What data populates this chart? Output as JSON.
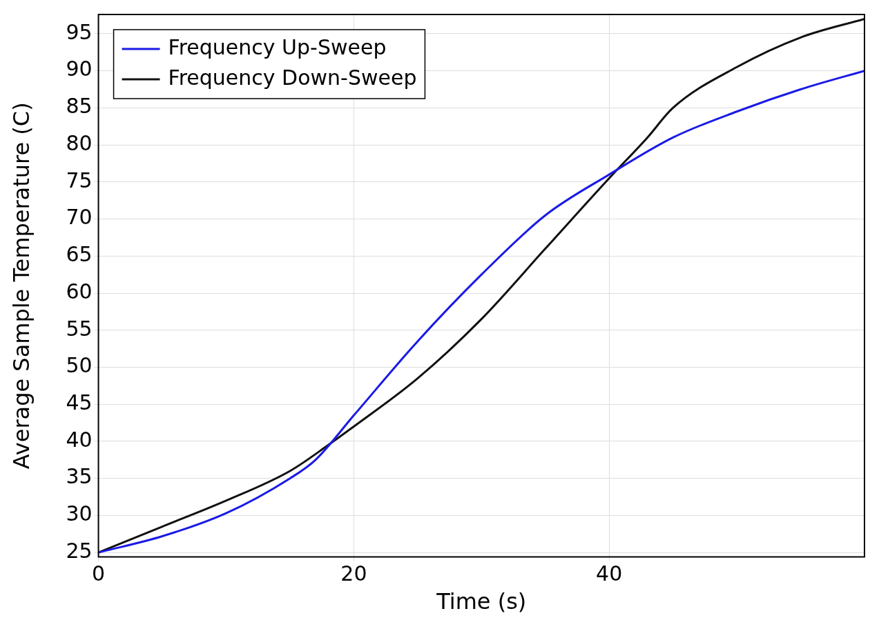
{
  "chart_data": {
    "type": "line",
    "xlabel": "Time (s)",
    "ylabel": "Average Sample Temperature (C)",
    "xlim": [
      0,
      60
    ],
    "ylim": [
      24.4,
      97.6
    ],
    "xticks": [
      0,
      20,
      40
    ],
    "yticks": [
      25,
      30,
      35,
      40,
      45,
      50,
      55,
      60,
      65,
      70,
      75,
      80,
      85,
      90,
      95
    ],
    "grid": true,
    "legend": "top left",
    "marker": "none",
    "line_style": "solid",
    "series": [
      {
        "name": "Frequency Up-Sweep",
        "color": "#1a1ae6",
        "x": [
          0,
          5,
          10,
          15,
          17,
          20,
          25,
          30,
          35,
          40,
          45,
          50,
          55,
          60
        ],
        "values": [
          25,
          27.2,
          30.3,
          35,
          37.5,
          43.5,
          53.5,
          62.5,
          70.5,
          76,
          81,
          84.5,
          87.5,
          90
        ]
      },
      {
        "name": "Frequency Down-Sweep",
        "color": "#111111",
        "x": [
          0,
          5,
          10,
          15,
          18,
          20,
          25,
          30,
          35,
          40,
          43,
          45,
          50,
          55,
          60
        ],
        "values": [
          25,
          28.5,
          32,
          36,
          39.5,
          42,
          48.5,
          56.5,
          66,
          75.5,
          81,
          85,
          90.5,
          94.5,
          97
        ]
      }
    ]
  }
}
